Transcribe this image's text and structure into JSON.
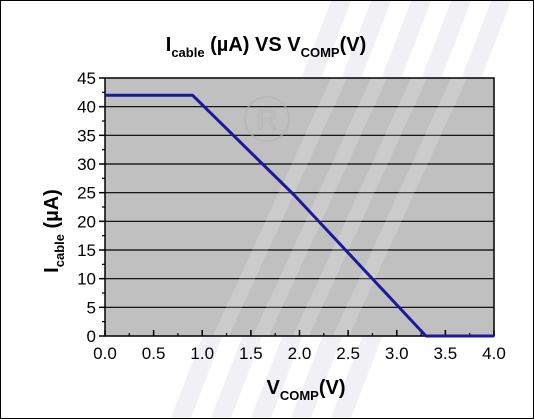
{
  "chart_data": {
    "type": "line",
    "title": {
      "prefix": "I",
      "prefix_sub": "cable",
      "middle": " (µA) VS V",
      "suffix_sub": "COMP",
      "suffix": "(V)"
    },
    "xlabel": {
      "main": "V",
      "sub": "COMP",
      "unit": "(V)"
    },
    "ylabel": {
      "main": "I",
      "sub": "cable",
      "unit": " (µA)"
    },
    "xlim": [
      0,
      4
    ],
    "ylim": [
      0,
      45
    ],
    "x_ticks": [
      "0.0",
      "0.5",
      "1.0",
      "1.5",
      "2.0",
      "2.5",
      "3.0",
      "3.5",
      "4.0"
    ],
    "x_tick_values": [
      0,
      0.5,
      1,
      1.5,
      2,
      2.5,
      3,
      3.5,
      4
    ],
    "y_ticks": [
      "0",
      "5",
      "10",
      "15",
      "20",
      "25",
      "30",
      "35",
      "40",
      "45"
    ],
    "y_tick_values": [
      0,
      5,
      10,
      15,
      20,
      25,
      30,
      35,
      40,
      45
    ],
    "grid": true,
    "series": [
      {
        "x": [
          0,
          0.9,
          1.95,
          3.3,
          4.0
        ],
        "y": [
          42,
          42,
          24.5,
          0,
          0
        ]
      }
    ],
    "colors": {
      "line": "#1a1a9c",
      "plot_background": "#c0c0c0",
      "grid": "#000000",
      "watermark": "#b4b4b4"
    }
  }
}
